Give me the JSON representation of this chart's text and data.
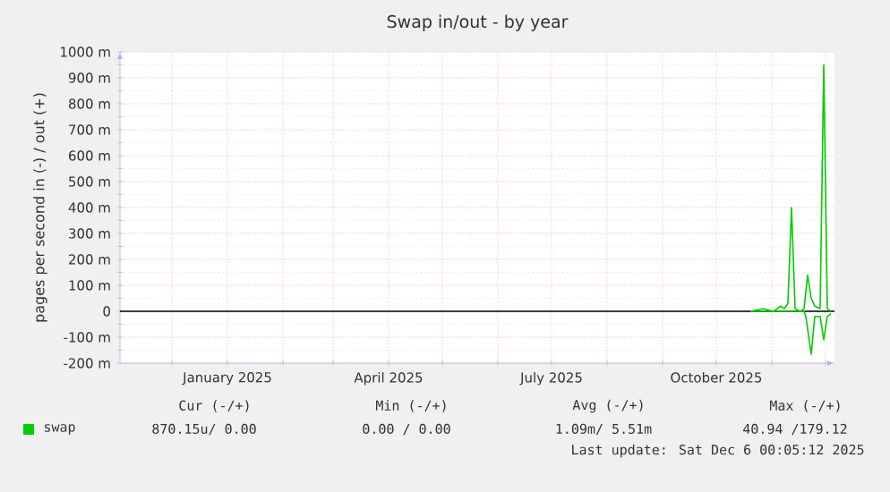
{
  "chart_data": {
    "type": "line",
    "title": "Swap in/out - by year",
    "ylabel": "pages per second in (-) / out (+)",
    "xlim": [
      "2024-11-02",
      "2025-12-06"
    ],
    "ylim": [
      -200,
      1000
    ],
    "xticks": [
      {
        "value": "2024-12-01",
        "label": null
      },
      {
        "value": "2025-01-01",
        "label": "January 2025"
      },
      {
        "value": "2025-02-01",
        "label": null
      },
      {
        "value": "2025-03-01",
        "label": null
      },
      {
        "value": "2025-04-01",
        "label": "April 2025"
      },
      {
        "value": "2025-05-01",
        "label": null
      },
      {
        "value": "2025-06-01",
        "label": null
      },
      {
        "value": "2025-07-01",
        "label": "July 2025"
      },
      {
        "value": "2025-08-01",
        "label": null
      },
      {
        "value": "2025-09-01",
        "label": null
      },
      {
        "value": "2025-10-01",
        "label": "October 2025"
      },
      {
        "value": "2025-11-01",
        "label": null
      },
      {
        "value": "2025-12-01",
        "label": null
      }
    ],
    "yticks": [
      {
        "value": -200,
        "label": "-200 m"
      },
      {
        "value": -100,
        "label": "-100 m"
      },
      0,
      {
        "value": 100,
        "label": "100 m"
      },
      {
        "value": 200,
        "label": "200 m"
      },
      {
        "value": 300,
        "label": "300 m"
      },
      {
        "value": 400,
        "label": "400 m"
      },
      {
        "value": 500,
        "label": "500 m"
      },
      {
        "value": 600,
        "label": "600 m"
      },
      {
        "value": 700,
        "label": "700 m"
      },
      {
        "value": 800,
        "label": "800 m"
      },
      {
        "value": 900,
        "label": "900 m"
      },
      {
        "value": 1000,
        "label": "1000 m"
      }
    ],
    "grid": true,
    "legend": "bottom left",
    "ref_lines": [
      {
        "axis": "y",
        "value": 0,
        "color": "#000000"
      }
    ],
    "series": [
      {
        "name": "swap",
        "color": "#00cc00",
        "x": [
          "2025-10-20",
          "2025-10-27",
          "2025-11-02",
          "2025-11-06",
          "2025-11-08",
          "2025-11-10",
          "2025-11-12",
          "2025-11-14",
          "2025-11-17",
          "2025-11-19",
          "2025-11-21",
          "2025-11-23",
          "2025-11-25",
          "2025-11-28",
          "2025-11-30",
          "2025-12-02",
          "2025-12-04"
        ],
        "values": [
          0,
          10,
          0,
          20,
          10,
          30,
          400,
          10,
          0,
          10,
          140,
          50,
          20,
          10,
          950,
          10,
          0
        ]
      },
      {
        "color": "#00cc00",
        "x": [
          "2025-10-20",
          "2025-11-19",
          "2025-11-20",
          "2025-11-23",
          "2025-11-25",
          "2025-11-28",
          "2025-11-30",
          "2025-12-02",
          "2025-12-04"
        ],
        "values": [
          0,
          0,
          -20,
          -165,
          -20,
          -20,
          -110,
          -20,
          -10
        ]
      }
    ],
    "annotations": [
      "Cur (-/+)",
      "Min (-/+)",
      "Avg (-/+)",
      "Max (-/+)",
      "870.15u/ 0.00",
      "0.00 / 0.00",
      "1.09m/ 5.51m",
      "40.94 /179.12",
      "Last update: Sat Dec 6 00:05:12 2025"
    ]
  }
}
